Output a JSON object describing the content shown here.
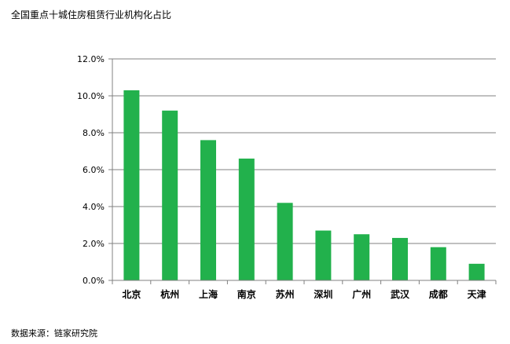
{
  "title": "全国重点十城住房租赁行业机构化占比",
  "source": "数据来源：链家研究院",
  "colors": {
    "bar": "#22b14c",
    "grid": "#808080",
    "axis": "#808080"
  },
  "chart_data": {
    "type": "bar",
    "title": "全国重点十城住房租赁行业机构化占比",
    "categories": [
      "北京",
      "杭州",
      "上海",
      "南京",
      "苏州",
      "深圳",
      "广州",
      "武汉",
      "成都",
      "天津"
    ],
    "values": [
      10.3,
      9.2,
      7.6,
      6.6,
      4.2,
      2.7,
      2.5,
      2.3,
      1.8,
      0.9
    ],
    "unit": "%",
    "ylim": [
      0,
      12
    ],
    "yticks": [
      "0.0%",
      "2.0%",
      "4.0%",
      "6.0%",
      "8.0%",
      "10.0%",
      "12.0%"
    ],
    "grid": true,
    "legend": "none",
    "xlabel": "",
    "ylabel": ""
  }
}
